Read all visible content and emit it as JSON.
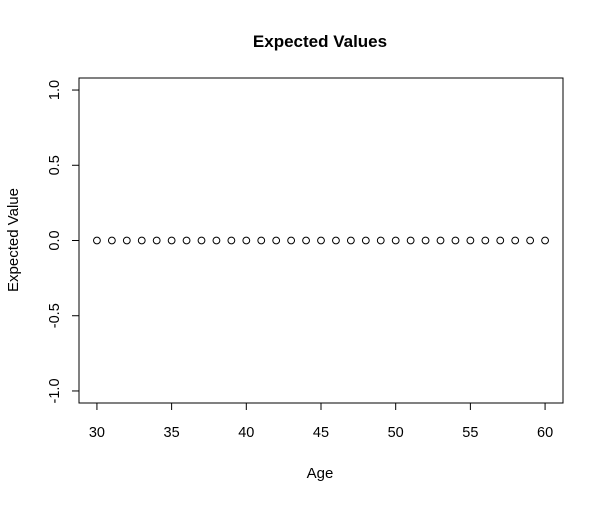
{
  "chart_data": {
    "type": "scatter",
    "title": "Expected Values",
    "xlabel": "Age",
    "ylabel": "Expected Value",
    "xlim": [
      28.8,
      61.2
    ],
    "ylim": [
      -1.08,
      1.08
    ],
    "x_ticks": [
      30,
      35,
      40,
      45,
      50,
      55,
      60
    ],
    "y_ticks": [
      -1.0,
      -0.5,
      0.0,
      0.5,
      1.0
    ],
    "y_tick_labels": [
      "-1.0",
      "-0.5",
      "0.0",
      "0.5",
      "1.0"
    ],
    "grid": false,
    "marker": "open-circle",
    "x": [
      30,
      31,
      32,
      33,
      34,
      35,
      36,
      37,
      38,
      39,
      40,
      41,
      42,
      43,
      44,
      45,
      46,
      47,
      48,
      49,
      50,
      51,
      52,
      53,
      54,
      55,
      56,
      57,
      58,
      59,
      60
    ],
    "y": [
      0,
      0,
      0,
      0,
      0,
      0,
      0,
      0,
      0,
      0,
      0,
      0,
      0,
      0,
      0,
      0,
      0,
      0,
      0,
      0,
      0,
      0,
      0,
      0,
      0,
      0,
      0,
      0,
      0,
      0,
      0
    ]
  }
}
